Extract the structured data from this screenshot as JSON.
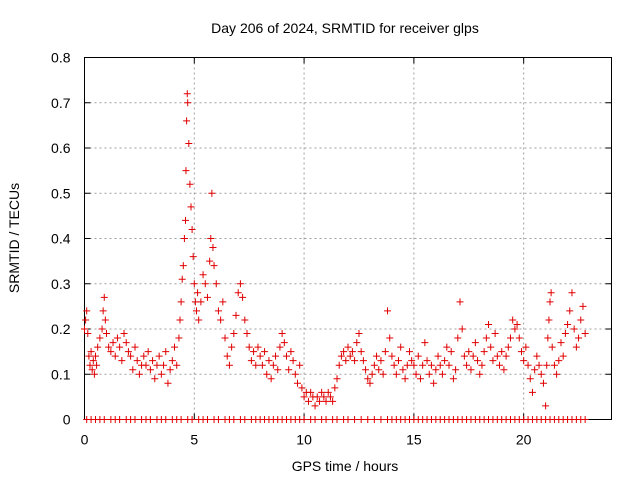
{
  "chart_data": {
    "type": "scatter",
    "title": "Day 206 of 2024, SRMTID for receiver glps",
    "xlabel": "GPS time / hours",
    "ylabel": "SRMTID / TECUs",
    "xlim": [
      0,
      24
    ],
    "ylim": [
      0,
      0.8
    ],
    "xticks": [
      0,
      5,
      10,
      15,
      20
    ],
    "yticks": [
      0,
      0.1,
      0.2,
      0.3,
      0.4,
      0.5,
      0.6,
      0.7,
      0.8
    ],
    "xtick_labels": [
      "0",
      "5",
      "10",
      "15",
      "20"
    ],
    "ytick_labels": [
      "0",
      "0.1",
      "0.2",
      "0.3",
      "0.4",
      "0.5",
      "0.6",
      "0.7",
      "0.8"
    ],
    "grid": true,
    "legend": "none",
    "marker": "+",
    "color": "#e00000",
    "series": [
      {
        "name": "SRMTID",
        "points": [
          [
            0.0,
            0.2
          ],
          [
            0.05,
            0.22
          ],
          [
            0.1,
            0.24
          ],
          [
            0.15,
            0.19
          ],
          [
            0.2,
            0.14
          ],
          [
            0.25,
            0.12
          ],
          [
            0.3,
            0.15
          ],
          [
            0.35,
            0.11
          ],
          [
            0.4,
            0.13
          ],
          [
            0.45,
            0.1
          ],
          [
            0.5,
            0.14
          ],
          [
            0.55,
            0.12
          ],
          [
            0.6,
            0.16
          ],
          [
            0.7,
            0.18
          ],
          [
            0.8,
            0.2
          ],
          [
            0.85,
            0.24
          ],
          [
            0.9,
            0.27
          ],
          [
            0.95,
            0.22
          ],
          [
            1.0,
            0.19
          ],
          [
            1.1,
            0.16
          ],
          [
            1.2,
            0.15
          ],
          [
            1.3,
            0.17
          ],
          [
            1.4,
            0.14
          ],
          [
            1.5,
            0.18
          ],
          [
            1.6,
            0.16
          ],
          [
            1.7,
            0.13
          ],
          [
            1.8,
            0.19
          ],
          [
            1.9,
            0.17
          ],
          [
            2.0,
            0.15
          ],
          [
            2.1,
            0.14
          ],
          [
            2.2,
            0.11
          ],
          [
            2.3,
            0.16
          ],
          [
            2.4,
            0.13
          ],
          [
            2.5,
            0.1
          ],
          [
            2.6,
            0.12
          ],
          [
            2.7,
            0.14
          ],
          [
            2.8,
            0.12
          ],
          [
            2.9,
            0.15
          ],
          [
            3.0,
            0.11
          ],
          [
            3.1,
            0.13
          ],
          [
            3.2,
            0.09
          ],
          [
            3.3,
            0.12
          ],
          [
            3.4,
            0.14
          ],
          [
            3.5,
            0.1
          ],
          [
            3.6,
            0.12
          ],
          [
            3.7,
            0.15
          ],
          [
            3.8,
            0.08
          ],
          [
            3.9,
            0.11
          ],
          [
            4.0,
            0.13
          ],
          [
            4.1,
            0.16
          ],
          [
            4.2,
            0.12
          ],
          [
            4.3,
            0.18
          ],
          [
            4.35,
            0.22
          ],
          [
            4.4,
            0.26
          ],
          [
            4.45,
            0.31
          ],
          [
            4.5,
            0.34
          ],
          [
            4.55,
            0.4
          ],
          [
            4.6,
            0.44
          ],
          [
            4.62,
            0.55
          ],
          [
            4.65,
            0.66
          ],
          [
            4.68,
            0.72
          ],
          [
            4.7,
            0.7
          ],
          [
            4.75,
            0.61
          ],
          [
            4.8,
            0.52
          ],
          [
            4.85,
            0.47
          ],
          [
            4.9,
            0.42
          ],
          [
            4.95,
            0.36
          ],
          [
            5.0,
            0.3
          ],
          [
            5.05,
            0.26
          ],
          [
            5.1,
            0.24
          ],
          [
            5.15,
            0.28
          ],
          [
            5.2,
            0.22
          ],
          [
            5.3,
            0.26
          ],
          [
            5.4,
            0.32
          ],
          [
            5.5,
            0.3
          ],
          [
            5.6,
            0.27
          ],
          [
            5.7,
            0.35
          ],
          [
            5.75,
            0.4
          ],
          [
            5.8,
            0.5
          ],
          [
            5.85,
            0.38
          ],
          [
            5.9,
            0.34
          ],
          [
            6.0,
            0.3
          ],
          [
            6.1,
            0.24
          ],
          [
            6.2,
            0.22
          ],
          [
            6.3,
            0.26
          ],
          [
            6.4,
            0.18
          ],
          [
            6.5,
            0.14
          ],
          [
            6.6,
            0.12
          ],
          [
            6.7,
            0.16
          ],
          [
            6.8,
            0.19
          ],
          [
            6.9,
            0.23
          ],
          [
            7.0,
            0.28
          ],
          [
            7.1,
            0.3
          ],
          [
            7.2,
            0.27
          ],
          [
            7.3,
            0.22
          ],
          [
            7.4,
            0.19
          ],
          [
            7.5,
            0.16
          ],
          [
            7.6,
            0.13
          ],
          [
            7.7,
            0.15
          ],
          [
            7.8,
            0.12
          ],
          [
            7.9,
            0.16
          ],
          [
            8.0,
            0.14
          ],
          [
            8.1,
            0.12
          ],
          [
            8.2,
            0.15
          ],
          [
            8.3,
            0.1
          ],
          [
            8.4,
            0.13
          ],
          [
            8.5,
            0.09
          ],
          [
            8.6,
            0.12
          ],
          [
            8.7,
            0.14
          ],
          [
            8.8,
            0.11
          ],
          [
            8.9,
            0.16
          ],
          [
            9.0,
            0.19
          ],
          [
            9.1,
            0.17
          ],
          [
            9.2,
            0.14
          ],
          [
            9.3,
            0.11
          ],
          [
            9.4,
            0.15
          ],
          [
            9.5,
            0.13
          ],
          [
            9.6,
            0.1
          ],
          [
            9.7,
            0.08
          ],
          [
            9.8,
            0.12
          ],
          [
            9.9,
            0.07
          ],
          [
            10.0,
            0.05
          ],
          [
            10.1,
            0.06
          ],
          [
            10.2,
            0.04
          ],
          [
            10.3,
            0.06
          ],
          [
            10.4,
            0.05
          ],
          [
            10.5,
            0.03
          ],
          [
            10.6,
            0.05
          ],
          [
            10.7,
            0.04
          ],
          [
            10.8,
            0.06
          ],
          [
            10.9,
            0.05
          ],
          [
            11.0,
            0.04
          ],
          [
            11.1,
            0.06
          ],
          [
            11.2,
            0.05
          ],
          [
            11.3,
            0.04
          ],
          [
            11.4,
            0.07
          ],
          [
            11.5,
            0.09
          ],
          [
            11.6,
            0.12
          ],
          [
            11.7,
            0.14
          ],
          [
            11.8,
            0.15
          ],
          [
            11.9,
            0.13
          ],
          [
            12.0,
            0.16
          ],
          [
            12.1,
            0.14
          ],
          [
            12.2,
            0.15
          ],
          [
            12.3,
            0.13
          ],
          [
            12.4,
            0.17
          ],
          [
            12.5,
            0.19
          ],
          [
            12.6,
            0.15
          ],
          [
            12.7,
            0.13
          ],
          [
            12.8,
            0.11
          ],
          [
            12.9,
            0.09
          ],
          [
            13.0,
            0.08
          ],
          [
            13.1,
            0.1
          ],
          [
            13.2,
            0.12
          ],
          [
            13.3,
            0.14
          ],
          [
            13.4,
            0.11
          ],
          [
            13.5,
            0.13
          ],
          [
            13.6,
            0.1
          ],
          [
            13.7,
            0.15
          ],
          [
            13.8,
            0.24
          ],
          [
            13.9,
            0.18
          ],
          [
            14.0,
            0.14
          ],
          [
            14.1,
            0.12
          ],
          [
            14.2,
            0.1
          ],
          [
            14.3,
            0.13
          ],
          [
            14.4,
            0.16
          ],
          [
            14.5,
            0.11
          ],
          [
            14.6,
            0.09
          ],
          [
            14.7,
            0.12
          ],
          [
            14.8,
            0.15
          ],
          [
            14.9,
            0.13
          ],
          [
            15.0,
            0.12
          ],
          [
            15.1,
            0.1
          ],
          [
            15.2,
            0.14
          ],
          [
            15.3,
            0.09
          ],
          [
            15.4,
            0.12
          ],
          [
            15.5,
            0.17
          ],
          [
            15.6,
            0.13
          ],
          [
            15.7,
            0.1
          ],
          [
            15.8,
            0.12
          ],
          [
            15.9,
            0.08
          ],
          [
            16.0,
            0.11
          ],
          [
            16.1,
            0.14
          ],
          [
            16.2,
            0.12
          ],
          [
            16.3,
            0.1
          ],
          [
            16.4,
            0.13
          ],
          [
            16.5,
            0.16
          ],
          [
            16.6,
            0.12
          ],
          [
            16.7,
            0.15
          ],
          [
            16.8,
            0.09
          ],
          [
            16.9,
            0.11
          ],
          [
            17.0,
            0.18
          ],
          [
            17.1,
            0.26
          ],
          [
            17.2,
            0.2
          ],
          [
            17.3,
            0.14
          ],
          [
            17.4,
            0.12
          ],
          [
            17.5,
            0.15
          ],
          [
            17.6,
            0.11
          ],
          [
            17.7,
            0.14
          ],
          [
            17.8,
            0.17
          ],
          [
            17.9,
            0.13
          ],
          [
            18.0,
            0.1
          ],
          [
            18.1,
            0.12
          ],
          [
            18.2,
            0.15
          ],
          [
            18.3,
            0.18
          ],
          [
            18.4,
            0.21
          ],
          [
            18.5,
            0.16
          ],
          [
            18.6,
            0.13
          ],
          [
            18.7,
            0.19
          ],
          [
            18.8,
            0.14
          ],
          [
            18.9,
            0.12
          ],
          [
            19.0,
            0.15
          ],
          [
            19.1,
            0.11
          ],
          [
            19.2,
            0.14
          ],
          [
            19.3,
            0.16
          ],
          [
            19.4,
            0.18
          ],
          [
            19.5,
            0.22
          ],
          [
            19.6,
            0.2
          ],
          [
            19.7,
            0.21
          ],
          [
            19.8,
            0.18
          ],
          [
            19.9,
            0.15
          ],
          [
            20.0,
            0.13
          ],
          [
            20.1,
            0.16
          ],
          [
            20.2,
            0.12
          ],
          [
            20.3,
            0.09
          ],
          [
            20.4,
            0.06
          ],
          [
            20.5,
            0.11
          ],
          [
            20.6,
            0.14
          ],
          [
            20.7,
            0.12
          ],
          [
            20.8,
            0.1
          ],
          [
            20.9,
            0.08
          ],
          [
            21.0,
            0.03
          ],
          [
            21.05,
            0.12
          ],
          [
            21.1,
            0.18
          ],
          [
            21.15,
            0.22
          ],
          [
            21.2,
            0.26
          ],
          [
            21.25,
            0.28
          ],
          [
            21.3,
            0.16
          ],
          [
            21.4,
            0.12
          ],
          [
            21.5,
            0.1
          ],
          [
            21.6,
            0.13
          ],
          [
            21.7,
            0.17
          ],
          [
            21.8,
            0.14
          ],
          [
            21.9,
            0.19
          ],
          [
            22.0,
            0.21
          ],
          [
            22.1,
            0.24
          ],
          [
            22.2,
            0.28
          ],
          [
            22.3,
            0.2
          ],
          [
            22.4,
            0.16
          ],
          [
            22.5,
            0.18
          ],
          [
            22.6,
            0.22
          ],
          [
            22.7,
            0.25
          ],
          [
            22.8,
            0.19
          ]
        ]
      }
    ],
    "zero_points_x": [
      0.1,
      0.3,
      0.5,
      0.7,
      0.9,
      1.2,
      1.4,
      1.6,
      1.9,
      2.1,
      2.3,
      2.6,
      2.8,
      3.0,
      3.3,
      3.5,
      3.7,
      4.0,
      4.2,
      4.4,
      4.7,
      4.9,
      5.2,
      5.4,
      5.6,
      5.9,
      6.1,
      6.4,
      6.6,
      6.8,
      7.1,
      7.3,
      7.6,
      7.8,
      8.0,
      8.2,
      8.4,
      8.6,
      8.8,
      9.0,
      9.2,
      9.4,
      9.6,
      9.8,
      10.0,
      10.3,
      10.5,
      10.8,
      11.0,
      11.3,
      11.5,
      11.8,
      12.0,
      12.3,
      12.6,
      12.9,
      13.2,
      13.5,
      13.8,
      14.0,
      14.2,
      14.4,
      14.6,
      14.8,
      15.0,
      15.2,
      15.4,
      15.6,
      15.8,
      16.0,
      16.2,
      16.4,
      16.6,
      16.8,
      17.0,
      17.2,
      17.4,
      17.6,
      17.8,
      18.0,
      18.2,
      18.4,
      18.6,
      18.8,
      19.0,
      19.2,
      19.4,
      19.6,
      19.8,
      20.0,
      20.2,
      20.4,
      20.6,
      20.8,
      21.0,
      21.2,
      21.4,
      21.6,
      21.8,
      22.0,
      22.2,
      22.4,
      22.6,
      22.8
    ]
  }
}
